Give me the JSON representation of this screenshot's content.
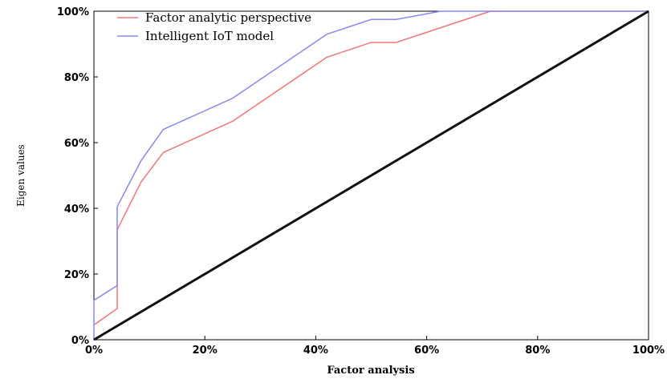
{
  "chart_data": {
    "type": "line",
    "title": "",
    "xlabel": "Factor analysis",
    "ylabel": "Eigen values",
    "xlim": [
      0,
      100
    ],
    "ylim": [
      0,
      100
    ],
    "x_ticks": [
      "0%",
      "20%",
      "40%",
      "60%",
      "80%",
      "100%"
    ],
    "y_ticks": [
      "0%",
      "20%",
      "40%",
      "60%",
      "80%",
      "100%"
    ],
    "x_tick_values": [
      0,
      20,
      40,
      60,
      80,
      100
    ],
    "y_tick_values": [
      0,
      20,
      40,
      60,
      80,
      100
    ],
    "grid": false,
    "legend_position": "top-left",
    "series": [
      {
        "name": "Factor analytic perspective",
        "color": "#f07575",
        "x": [
          0,
          4.2,
          4.2,
          8.5,
          12.5,
          25,
          42,
          50,
          54.5,
          71.5,
          100
        ],
        "y": [
          4.5,
          9.5,
          33.5,
          48,
          57,
          66.5,
          86,
          90.5,
          90.5,
          100,
          100
        ]
      },
      {
        "name": "Intelligent IoT model",
        "color": "#8888ee",
        "x": [
          0,
          0,
          4.2,
          4.2,
          8.5,
          12.5,
          25,
          42,
          50,
          54.5,
          62.5,
          100
        ],
        "y": [
          0,
          12,
          16.5,
          40.5,
          54.5,
          64,
          73.5,
          93,
          97.5,
          97.5,
          100,
          100
        ]
      },
      {
        "name": "",
        "color": "#111111",
        "x": [
          0,
          100
        ],
        "y": [
          0,
          100
        ]
      }
    ]
  }
}
